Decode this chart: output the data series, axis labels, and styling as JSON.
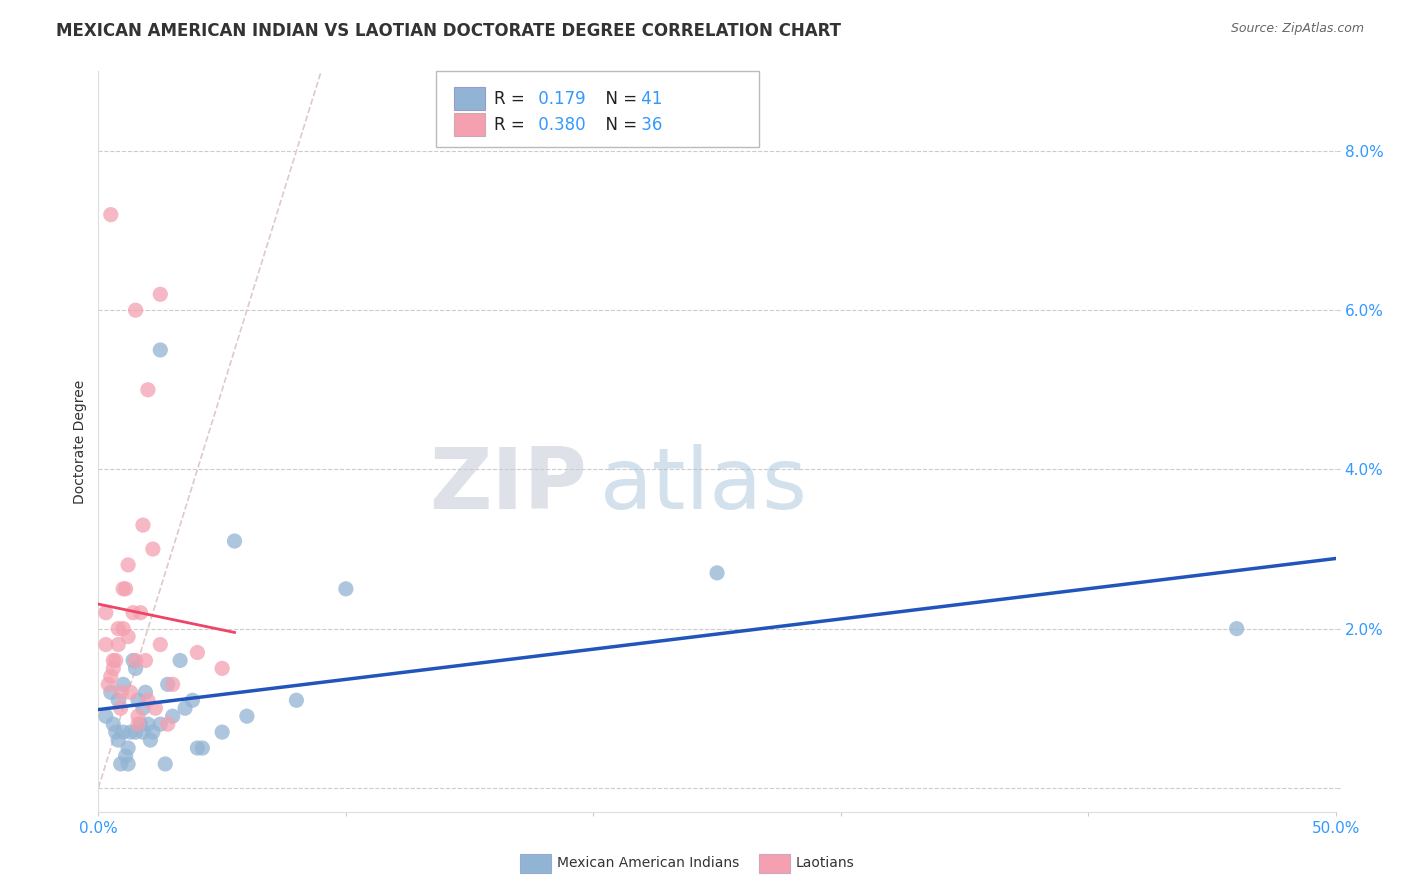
{
  "title": "MEXICAN AMERICAN INDIAN VS LAOTIAN DOCTORATE DEGREE CORRELATION CHART",
  "source": "Source: ZipAtlas.com",
  "ylabel": "Doctorate Degree",
  "xlim": [
    0.0,
    0.5
  ],
  "ylim": [
    -0.003,
    0.09
  ],
  "ytick_vals": [
    0.0,
    0.02,
    0.04,
    0.06,
    0.08
  ],
  "ytick_labels": [
    "",
    "2.0%",
    "4.0%",
    "6.0%",
    "8.0%"
  ],
  "xtick_vals": [
    0.0,
    0.1,
    0.2,
    0.3,
    0.4,
    0.5
  ],
  "xtick_labels": [
    "0.0%",
    "",
    "",
    "",
    "",
    "50.0%"
  ],
  "r_blue": "0.179",
  "n_blue": "41",
  "r_pink": "0.380",
  "n_pink": "36",
  "legend_label_blue": "Mexican American Indians",
  "legend_label_pink": "Laotians",
  "watermark_zip": "ZIP",
  "watermark_atlas": "atlas",
  "blue_color": "#92B4D4",
  "pink_color": "#F4A0B0",
  "line_blue_color": "#2255BB",
  "line_pink_color": "#EE4466",
  "diag_line_color": "#E0C8C8",
  "blue_x": [
    0.003,
    0.005,
    0.006,
    0.007,
    0.008,
    0.008,
    0.009,
    0.01,
    0.01,
    0.011,
    0.012,
    0.012,
    0.013,
    0.014,
    0.015,
    0.015,
    0.016,
    0.017,
    0.018,
    0.018,
    0.019,
    0.02,
    0.021,
    0.022,
    0.025,
    0.025,
    0.027,
    0.028,
    0.03,
    0.033,
    0.035,
    0.038,
    0.04,
    0.042,
    0.05,
    0.055,
    0.06,
    0.08,
    0.1,
    0.25,
    0.46
  ],
  "blue_y": [
    0.009,
    0.012,
    0.008,
    0.007,
    0.006,
    0.011,
    0.003,
    0.013,
    0.007,
    0.004,
    0.005,
    0.003,
    0.007,
    0.016,
    0.015,
    0.007,
    0.011,
    0.008,
    0.01,
    0.007,
    0.012,
    0.008,
    0.006,
    0.007,
    0.008,
    0.055,
    0.003,
    0.013,
    0.009,
    0.016,
    0.01,
    0.011,
    0.005,
    0.005,
    0.007,
    0.031,
    0.009,
    0.011,
    0.025,
    0.027,
    0.02
  ],
  "pink_x": [
    0.003,
    0.003,
    0.004,
    0.005,
    0.005,
    0.006,
    0.007,
    0.008,
    0.008,
    0.009,
    0.009,
    0.01,
    0.01,
    0.011,
    0.012,
    0.012,
    0.013,
    0.014,
    0.015,
    0.015,
    0.016,
    0.016,
    0.017,
    0.018,
    0.019,
    0.02,
    0.02,
    0.022,
    0.023,
    0.025,
    0.025,
    0.028,
    0.03,
    0.04,
    0.05,
    0.006
  ],
  "pink_y": [
    0.018,
    0.022,
    0.013,
    0.072,
    0.014,
    0.015,
    0.016,
    0.02,
    0.018,
    0.01,
    0.012,
    0.025,
    0.02,
    0.025,
    0.028,
    0.019,
    0.012,
    0.022,
    0.06,
    0.016,
    0.008,
    0.009,
    0.022,
    0.033,
    0.016,
    0.05,
    0.011,
    0.03,
    0.01,
    0.062,
    0.018,
    0.008,
    0.013,
    0.017,
    0.015,
    0.016
  ],
  "grid_color": "#CCCCCC",
  "bg_color": "#FFFFFF",
  "title_color": "#333333",
  "legend_text_color": "#222222",
  "value_color": "#3399FF",
  "title_fontsize": 12,
  "label_fontsize": 10,
  "tick_fontsize": 11
}
